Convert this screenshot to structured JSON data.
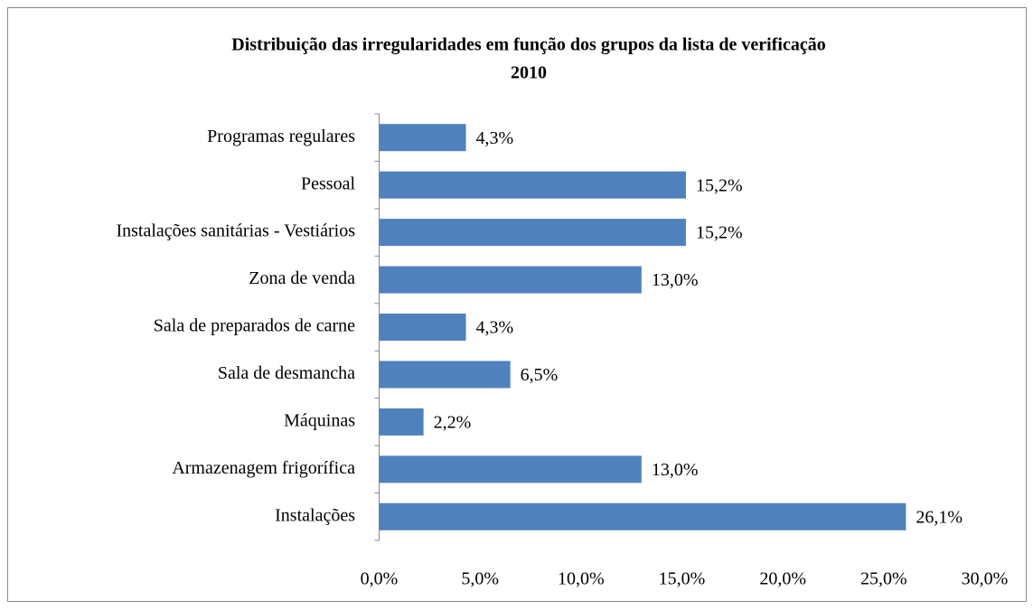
{
  "chart_data": {
    "type": "bar",
    "orientation": "horizontal",
    "title": [
      "Distribuição das irregularidades em função dos grupos da lista de verificação",
      "2010"
    ],
    "categories": [
      "Programas regulares",
      "Pessoal",
      "Instalações sanitárias - Vestiários",
      "Zona de venda",
      "Sala de preparados de carne",
      "Sala de desmancha",
      "Máquinas",
      "Armazenagem frigorífica",
      "Instalações"
    ],
    "values": [
      4.3,
      15.2,
      15.2,
      13.0,
      4.3,
      6.5,
      2.2,
      13.0,
      26.1
    ],
    "value_labels": [
      "4,3%",
      "15,2%",
      "15,2%",
      "13,0%",
      "4,3%",
      "6,5%",
      "2,2%",
      "13,0%",
      "26,1%"
    ],
    "color": "#4f81bd",
    "xlim": [
      0,
      30
    ],
    "xticks": [
      {
        "value": 0,
        "label": "0,0%"
      },
      {
        "value": 5,
        "label": "5,0%"
      },
      {
        "value": 10,
        "label": "10,0%"
      },
      {
        "value": 15,
        "label": "15,0%"
      },
      {
        "value": 20,
        "label": "20,0%"
      },
      {
        "value": 25,
        "label": "25,0%"
      },
      {
        "value": 30,
        "label": "30,0%"
      }
    ],
    "grid": false
  }
}
